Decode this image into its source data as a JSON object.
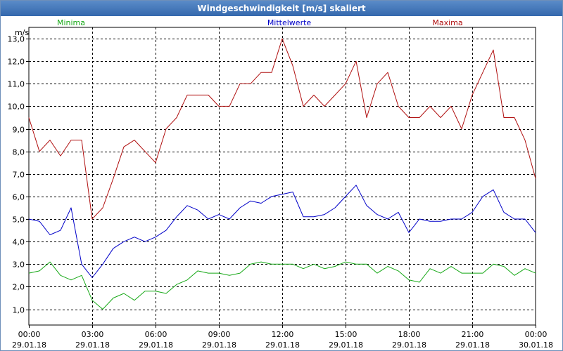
{
  "chart_data": {
    "type": "line",
    "title": "Windgeschwindigkeit [m/s] skaliert",
    "ylabel": "m/s",
    "ylim": [
      0.3,
      13.5
    ],
    "yticks": [
      "1,0",
      "2,0",
      "3,0",
      "4,0",
      "5,0",
      "6,0",
      "7,0",
      "8,0",
      "9,0",
      "10,0",
      "11,0",
      "12,0",
      "13,0"
    ],
    "xlim_hours": [
      0,
      24
    ],
    "xticks": [
      {
        "time": "00:00",
        "date": "29.01.18"
      },
      {
        "time": "03:00",
        "date": "29.01.18"
      },
      {
        "time": "06:00",
        "date": "29.01.18"
      },
      {
        "time": "09:00",
        "date": "29.01.18"
      },
      {
        "time": "12:00",
        "date": "29.01.18"
      },
      {
        "time": "15:00",
        "date": "29.01.18"
      },
      {
        "time": "18:00",
        "date": "29.01.18"
      },
      {
        "time": "21:00",
        "date": "29.01.18"
      },
      {
        "time": "00:00",
        "date": "30.01.18"
      }
    ],
    "grid": true,
    "legend_placement": "top",
    "series": [
      {
        "name": "Minima",
        "color": "#16a816",
        "x_hours": [
          0.0,
          0.5,
          1.0,
          1.5,
          2.0,
          2.5,
          3.0,
          3.5,
          4.0,
          4.5,
          5.0,
          5.5,
          6.0,
          6.5,
          7.0,
          7.5,
          8.0,
          8.5,
          9.0,
          9.5,
          10.0,
          10.5,
          11.0,
          11.5,
          12.0,
          12.5,
          13.0,
          13.5,
          14.0,
          14.5,
          15.0,
          15.5,
          16.0,
          16.5,
          17.0,
          17.5,
          18.0,
          18.5,
          19.0,
          19.5,
          20.0,
          20.5,
          21.0,
          21.5,
          22.0,
          22.5,
          23.0,
          23.5,
          24.0
        ],
        "values": [
          2.6,
          2.7,
          3.1,
          2.5,
          2.3,
          2.5,
          1.4,
          1.0,
          1.5,
          1.7,
          1.4,
          1.8,
          1.8,
          1.7,
          2.1,
          2.3,
          2.7,
          2.6,
          2.6,
          2.5,
          2.6,
          3.0,
          3.1,
          3.0,
          3.0,
          3.0,
          2.8,
          3.0,
          2.8,
          2.9,
          3.1,
          3.0,
          3.0,
          2.6,
          2.9,
          2.7,
          2.3,
          2.2,
          2.8,
          2.6,
          2.9,
          2.6,
          2.6,
          2.6,
          3.0,
          2.9,
          2.5,
          2.8,
          2.6
        ]
      },
      {
        "name": "Mittelwerte",
        "color": "#0000c8",
        "x_hours": [
          0.0,
          0.5,
          1.0,
          1.5,
          2.0,
          2.5,
          3.0,
          3.5,
          4.0,
          4.5,
          5.0,
          5.5,
          6.0,
          6.5,
          7.0,
          7.5,
          8.0,
          8.5,
          9.0,
          9.5,
          10.0,
          10.5,
          11.0,
          11.5,
          12.0,
          12.5,
          13.0,
          13.5,
          14.0,
          14.5,
          15.0,
          15.5,
          16.0,
          16.5,
          17.0,
          17.5,
          18.0,
          18.5,
          19.0,
          19.5,
          20.0,
          20.5,
          21.0,
          21.5,
          22.0,
          22.5,
          23.0,
          23.5,
          24.0
        ],
        "values": [
          5.0,
          4.9,
          4.3,
          4.5,
          5.5,
          3.0,
          2.4,
          3.0,
          3.7,
          4.0,
          4.2,
          4.0,
          4.2,
          4.5,
          5.1,
          5.6,
          5.4,
          5.0,
          5.2,
          5.0,
          5.5,
          5.8,
          5.7,
          6.0,
          6.1,
          6.2,
          5.1,
          5.1,
          5.2,
          5.5,
          6.0,
          6.5,
          5.6,
          5.2,
          5.0,
          5.3,
          4.4,
          5.0,
          4.9,
          4.9,
          5.0,
          5.0,
          5.3,
          6.0,
          6.3,
          5.3,
          5.0,
          5.0,
          4.4
        ]
      },
      {
        "name": "Maxima",
        "color": "#b01010",
        "x_hours": [
          0.0,
          0.5,
          1.0,
          1.5,
          2.0,
          2.5,
          3.0,
          3.5,
          4.0,
          4.5,
          5.0,
          5.5,
          6.0,
          6.5,
          7.0,
          7.5,
          8.0,
          8.5,
          9.0,
          9.5,
          10.0,
          10.5,
          11.0,
          11.5,
          12.0,
          12.5,
          13.0,
          13.5,
          14.0,
          14.5,
          15.0,
          15.5,
          16.0,
          16.5,
          17.0,
          17.5,
          18.0,
          18.5,
          19.0,
          19.5,
          20.0,
          20.5,
          21.0,
          21.5,
          22.0,
          22.5,
          23.0,
          23.5,
          24.0
        ],
        "values": [
          9.5,
          8.0,
          8.5,
          7.8,
          8.5,
          8.5,
          5.0,
          5.5,
          6.8,
          8.2,
          8.5,
          8.0,
          7.5,
          9.0,
          9.5,
          10.5,
          10.5,
          10.5,
          10.0,
          10.0,
          11.0,
          11.0,
          11.5,
          11.5,
          13.0,
          11.8,
          10.0,
          10.5,
          10.0,
          10.5,
          11.0,
          12.0,
          9.5,
          11.0,
          11.5,
          10.0,
          9.5,
          9.5,
          10.0,
          9.5,
          10.0,
          9.0,
          10.5,
          11.5,
          12.5,
          9.5,
          9.5,
          8.5,
          6.8
        ]
      }
    ]
  }
}
